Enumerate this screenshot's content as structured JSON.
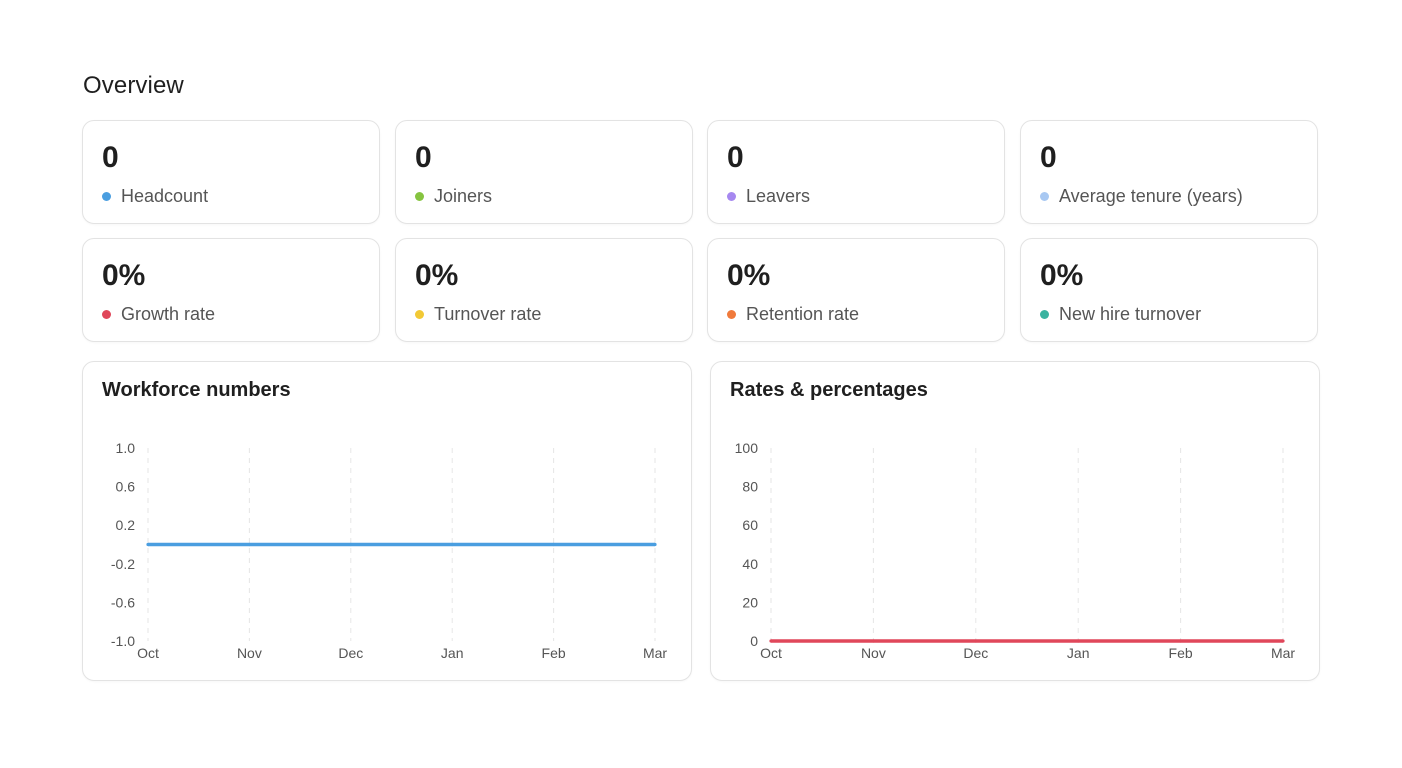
{
  "page": {
    "title": "Overview"
  },
  "stats": [
    {
      "value": "0",
      "label": "Headcount",
      "color": "#4a9ee0"
    },
    {
      "value": "0",
      "label": "Joiners",
      "color": "#86c440"
    },
    {
      "value": "0",
      "label": "Leavers",
      "color": "#a688f0"
    },
    {
      "value": "0",
      "label": "Average tenure (years)",
      "color": "#a8c8f2"
    },
    {
      "value": "0%",
      "label": "Growth rate",
      "color": "#e0475a"
    },
    {
      "value": "0%",
      "label": "Turnover rate",
      "color": "#f2c935"
    },
    {
      "value": "0%",
      "label": "Retention rate",
      "color": "#f07a3c"
    },
    {
      "value": "0%",
      "label": "New hire turnover",
      "color": "#3bb3a0"
    }
  ],
  "chart_data": [
    {
      "type": "line",
      "title": "Workforce numbers",
      "x": [
        "Oct",
        "Nov",
        "Dec",
        "Jan",
        "Feb",
        "Mar"
      ],
      "yticks": [
        "1.0",
        "0.6",
        "0.2",
        "-0.2",
        "-0.6",
        "-1.0"
      ],
      "ylim": [
        -1.0,
        1.0
      ],
      "grid": "vertical-dashed",
      "series": [
        {
          "values": [
            0,
            0,
            0,
            0,
            0,
            0
          ],
          "color": "#4a9ee0"
        }
      ]
    },
    {
      "type": "line",
      "title": "Rates & percentages",
      "x": [
        "Oct",
        "Nov",
        "Dec",
        "Jan",
        "Feb",
        "Mar"
      ],
      "yticks": [
        "100",
        "80",
        "60",
        "40",
        "20",
        "0"
      ],
      "ylim": [
        0,
        100
      ],
      "grid": "vertical-dashed",
      "series": [
        {
          "values": [
            0,
            0,
            0,
            0,
            0,
            0
          ],
          "color": "#e0475a"
        }
      ]
    }
  ]
}
